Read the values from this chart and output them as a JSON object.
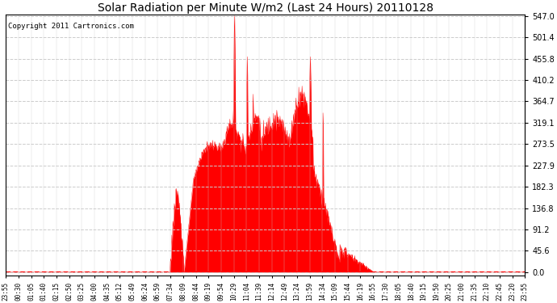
{
  "title": "Solar Radiation per Minute W/m2 (Last 24 Hours) 20110128",
  "copyright": "Copyright 2011 Cartronics.com",
  "ymax": 547.0,
  "ymin": 0.0,
  "yticks": [
    0.0,
    45.6,
    91.2,
    136.8,
    182.3,
    227.9,
    273.5,
    319.1,
    364.7,
    410.2,
    455.8,
    501.4,
    547.0
  ],
  "fill_color": "#FF0000",
  "line_color": "#FF0000",
  "dashed_line_color": "#FF0000",
  "bg_color": "#FFFFFF",
  "border_color": "#000000",
  "xtick_labels": [
    "23:55",
    "00:30",
    "01:05",
    "01:40",
    "02:15",
    "02:50",
    "03:25",
    "04:00",
    "04:35",
    "05:12",
    "05:49",
    "06:24",
    "06:59",
    "07:34",
    "08:09",
    "08:44",
    "09:19",
    "09:54",
    "10:29",
    "11:04",
    "11:39",
    "12:14",
    "12:49",
    "13:24",
    "13:59",
    "14:34",
    "15:09",
    "15:44",
    "16:19",
    "16:55",
    "17:30",
    "18:05",
    "18:40",
    "19:15",
    "19:50",
    "20:25",
    "21:00",
    "21:35",
    "22:10",
    "22:45",
    "23:20",
    "23:55"
  ],
  "total_minutes": 1440
}
